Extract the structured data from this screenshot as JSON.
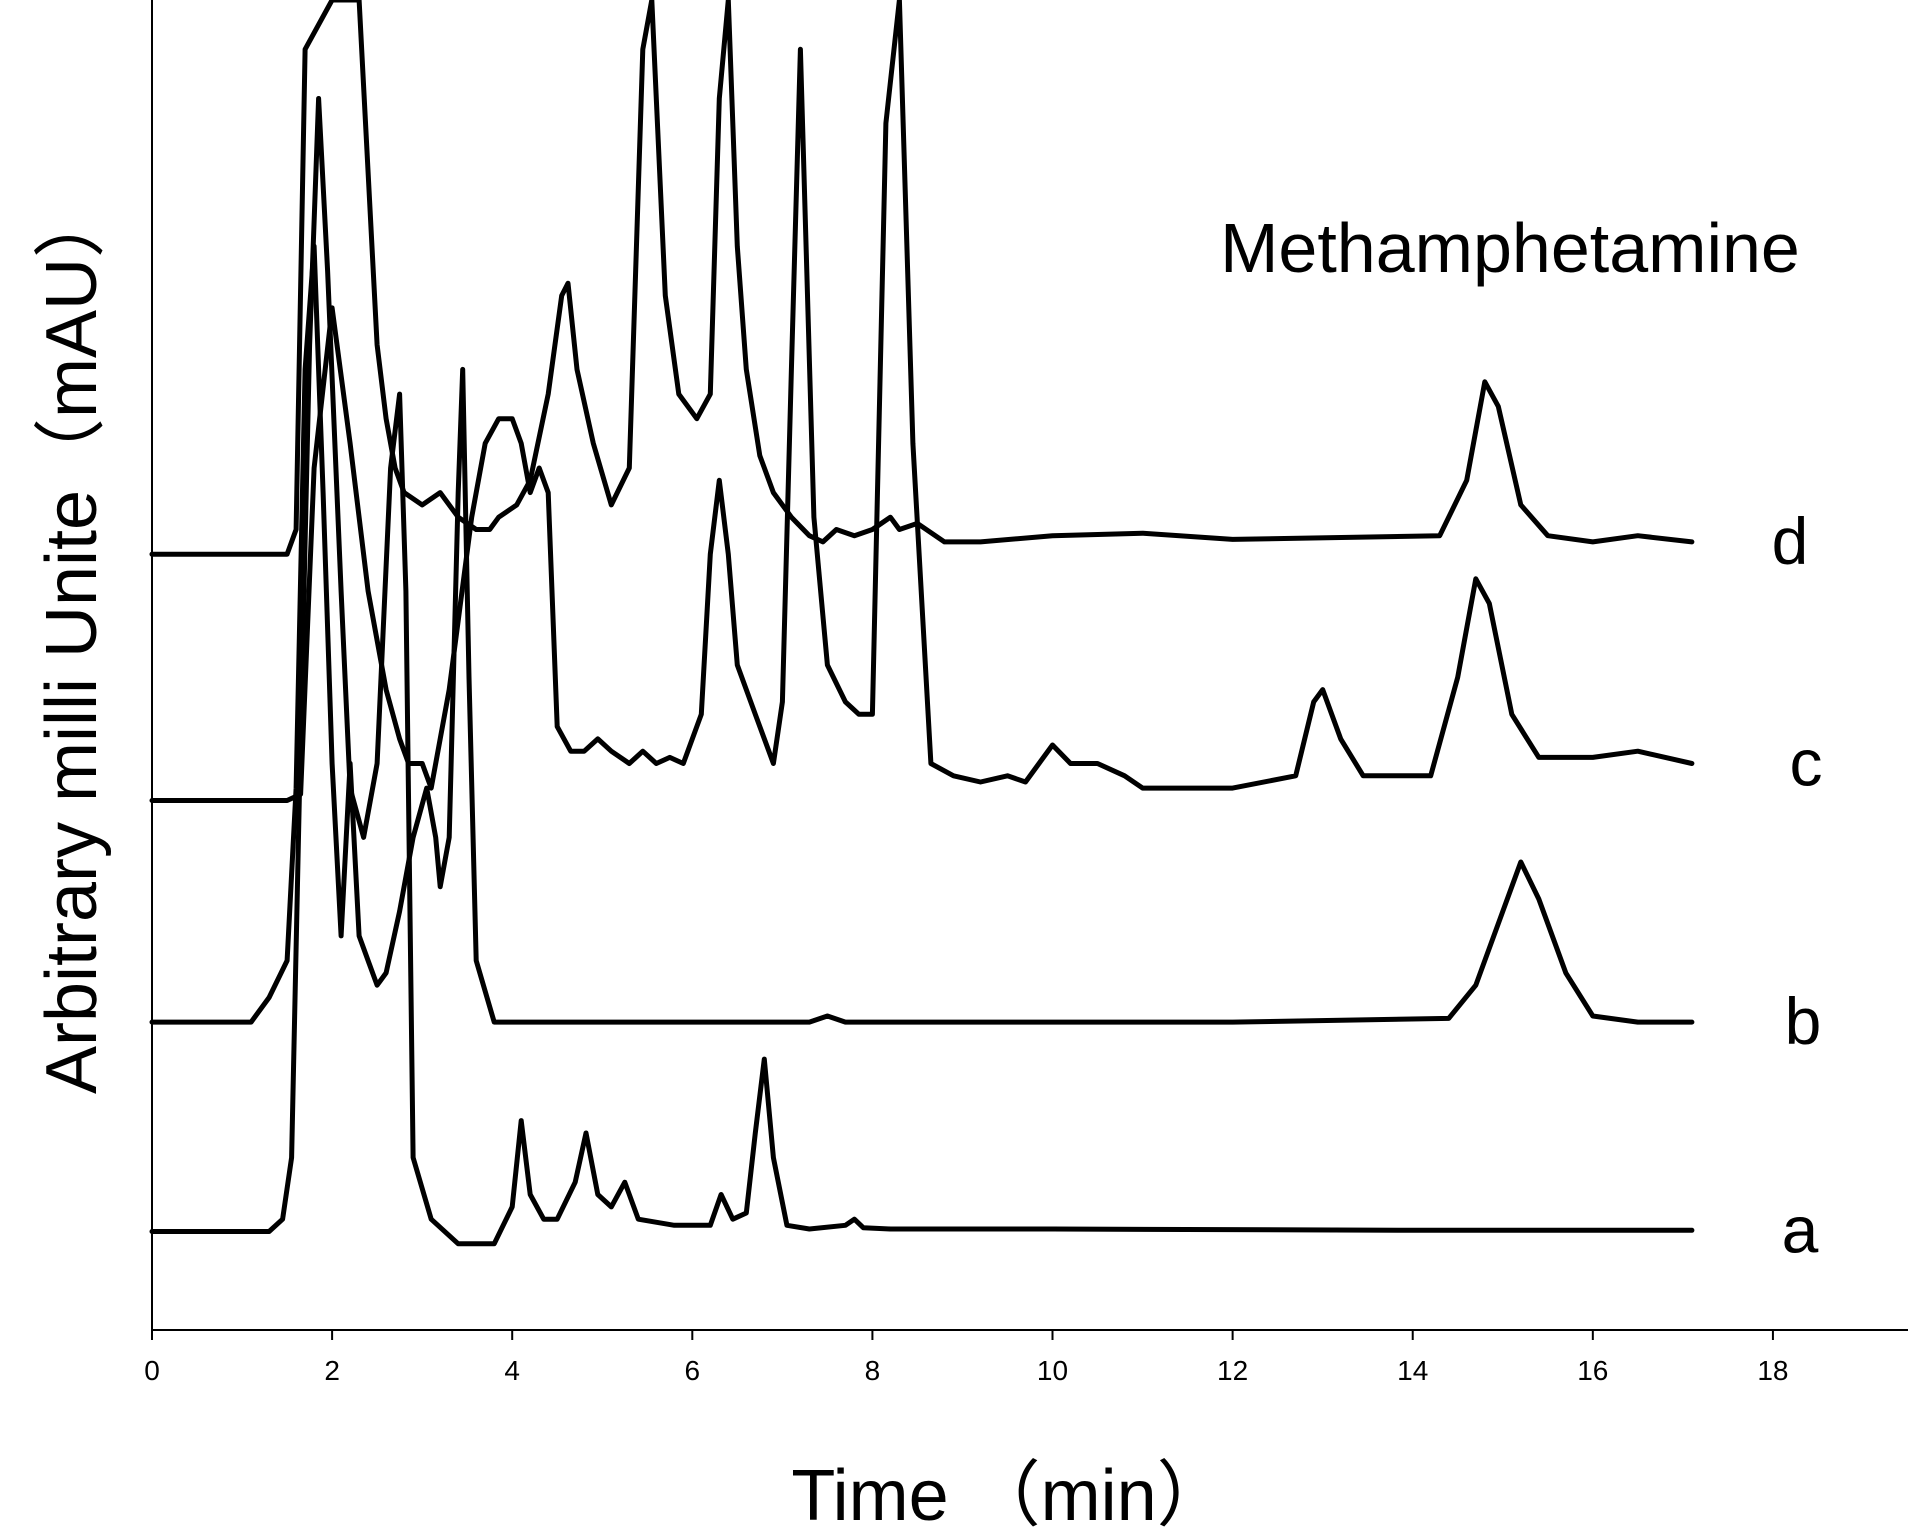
{
  "chart_data": {
    "type": "line",
    "title": "",
    "xlabel": "Time （min）",
    "ylabel": "Arbitrary milli Unite（mAU）",
    "xlim": [
      0,
      19.5
    ],
    "ylim": [
      -8,
      100
    ],
    "grid": false,
    "xticks": [
      0,
      2,
      4,
      6,
      8,
      10,
      12,
      14,
      16,
      18
    ],
    "annotation": "Methamphetamine",
    "series": [
      {
        "name": "a",
        "x": [
          0,
          1.3,
          1.45,
          1.55,
          1.65,
          1.75,
          1.85,
          1.95,
          2.1,
          2.2,
          2.35,
          2.5,
          2.65,
          2.75,
          2.82,
          2.9,
          3.1,
          3.4,
          3.8,
          4.0,
          4.1,
          4.2,
          4.35,
          4.5,
          4.7,
          4.82,
          4.95,
          5.1,
          5.25,
          5.4,
          5.8,
          6.2,
          6.32,
          6.45,
          6.6,
          6.7,
          6.8,
          6.9,
          7.05,
          7.3,
          7.7,
          7.8,
          7.9,
          8.2,
          10,
          14,
          17.1
        ],
        "y": [
          0,
          0,
          1,
          6,
          40,
          72,
          92,
          78,
          52,
          36,
          32,
          38,
          62,
          68,
          52,
          6,
          1,
          -1,
          -1,
          2,
          9,
          3,
          1,
          1,
          4,
          8,
          3,
          2,
          4,
          1,
          0.5,
          0.5,
          3,
          1,
          1.5,
          8,
          14,
          6,
          0.5,
          0.2,
          0.5,
          1,
          0.3,
          0.2,
          0.2,
          0.1,
          0.1
        ]
      },
      {
        "name": "b",
        "x": [
          0,
          1.1,
          1.3,
          1.5,
          1.6,
          1.7,
          1.8,
          1.9,
          2.0,
          2.1,
          2.2,
          2.3,
          2.4,
          2.5,
          2.6,
          2.75,
          2.9,
          3.05,
          3.15,
          3.2,
          3.3,
          3.4,
          3.45,
          3.52,
          3.6,
          3.8,
          4.5,
          7.3,
          7.5,
          7.7,
          12,
          14.4,
          14.7,
          15.0,
          15.2,
          15.4,
          15.7,
          16.0,
          16.5,
          17.1
        ],
        "y": [
          17,
          17,
          19,
          22,
          36,
          70,
          80,
          60,
          38,
          24,
          38,
          24,
          22,
          20,
          21,
          26,
          32,
          36,
          32,
          28,
          32,
          60,
          70,
          45,
          22,
          17,
          17,
          17,
          17.5,
          17,
          17,
          17.3,
          20,
          26,
          30,
          27,
          21,
          17.5,
          17,
          17
        ]
      },
      {
        "name": "c",
        "x": [
          0,
          1.5,
          1.65,
          1.8,
          2.0,
          2.2,
          2.4,
          2.6,
          2.75,
          2.85,
          3.0,
          3.1,
          3.3,
          3.55,
          3.7,
          3.85,
          4.0,
          4.1,
          4.2,
          4.3,
          4.4,
          4.5,
          4.65,
          4.8,
          4.95,
          5.1,
          5.3,
          5.45,
          5.6,
          5.75,
          5.9,
          6.1,
          6.2,
          6.3,
          6.4,
          6.5,
          6.7,
          6.9,
          7.0,
          7.1,
          7.2,
          7.35,
          7.5,
          7.7,
          7.85,
          8.0,
          8.15,
          8.3,
          8.45,
          8.65,
          8.9,
          9.2,
          9.5,
          9.7,
          9.85,
          10.0,
          10.2,
          10.5,
          10.8,
          11.0,
          12.0,
          12.7,
          12.9,
          13.0,
          13.2,
          13.45,
          14.2,
          14.5,
          14.7,
          14.85,
          15.1,
          15.4,
          16.0,
          16.5,
          17.1
        ],
        "y": [
          35,
          35,
          35.5,
          62,
          75,
          64,
          52,
          44,
          40,
          38,
          38,
          36,
          44,
          58,
          64,
          66,
          66,
          64,
          60,
          62,
          60,
          41,
          39,
          39,
          40,
          39,
          38,
          39,
          38,
          38.5,
          38,
          42,
          55,
          61,
          55,
          46,
          42,
          38,
          43,
          70,
          96,
          58,
          46,
          43,
          42,
          42,
          90,
          100,
          64,
          38,
          37,
          36.5,
          37,
          36.5,
          38,
          39.5,
          38,
          38,
          37,
          36,
          36,
          37,
          43,
          44,
          40,
          37,
          37,
          45,
          53,
          51,
          42,
          38.5,
          38.5,
          39,
          38
        ]
      },
      {
        "name": "d",
        "x": [
          0,
          1.5,
          1.6,
          1.7,
          2.0,
          2.3,
          2.5,
          2.6,
          2.7,
          2.8,
          3.0,
          3.2,
          3.4,
          3.6,
          3.75,
          3.85,
          3.95,
          4.05,
          4.2,
          4.4,
          4.55,
          4.62,
          4.72,
          4.9,
          5.1,
          5.3,
          5.45,
          5.55,
          5.7,
          5.85,
          6.05,
          6.2,
          6.3,
          6.4,
          6.5,
          6.6,
          6.75,
          6.9,
          7.1,
          7.3,
          7.45,
          7.6,
          7.8,
          8.0,
          8.2,
          8.3,
          8.5,
          8.8,
          9.2,
          10,
          11,
          12,
          14.3,
          14.6,
          14.8,
          14.95,
          15.2,
          15.5,
          16.0,
          16.5,
          17.1
        ],
        "y": [
          55,
          55,
          57,
          96,
          100,
          100,
          72,
          66,
          62,
          60,
          59,
          60,
          58,
          57,
          57,
          58,
          58.5,
          59,
          61,
          68,
          76,
          77,
          70,
          64,
          59,
          62,
          96,
          100,
          76,
          68,
          66,
          68,
          92,
          100,
          80,
          70,
          63,
          60,
          58,
          56.5,
          56,
          57,
          56.5,
          57,
          58,
          57,
          57.5,
          56,
          56,
          56.5,
          56.7,
          56.2,
          56.5,
          61,
          69,
          67,
          59,
          56.5,
          56,
          56.5,
          56
        ]
      }
    ]
  }
}
